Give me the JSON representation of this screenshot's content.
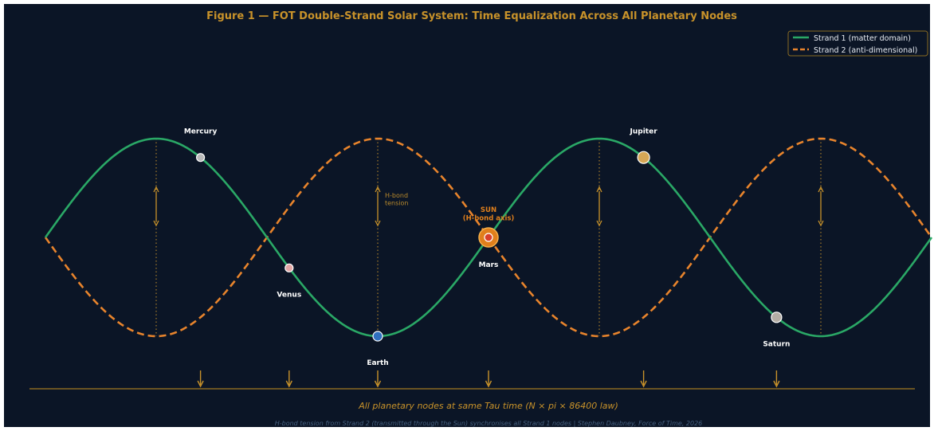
{
  "title": "Figure 1 — FOT Double-Strand Solar System: Time Equalization Across All Planetary Nodes",
  "legend": {
    "placement": "top-right",
    "items": [
      {
        "label": "Strand 1 (matter domain)",
        "color": "#2aa866",
        "style": "solid"
      },
      {
        "label": "Strand 2 (anti-dimensional)",
        "color": "#e8842c",
        "style": "dashed"
      }
    ]
  },
  "colors": {
    "background": "#0b1526",
    "gold": "#c8922a",
    "strand1": "#2aa866",
    "strand2": "#e8842c",
    "sun": "#e07f1c",
    "sun_core": "#d9402b",
    "white_text": "#ffffff",
    "footer": "#46607f"
  },
  "annotations": {
    "hbond": "H-bond\ntension",
    "sun": "SUN\n(H-bond axis)"
  },
  "chart_data": {
    "type": "line",
    "x_range": [
      0,
      8
    ],
    "y_range": [
      -1,
      1
    ],
    "series": [
      {
        "name": "Strand 1 (matter domain)",
        "function": "sin(pi*x/2)",
        "style": "solid"
      },
      {
        "name": "Strand 2 (anti-dimensional)",
        "function": "-sin(pi*x/2)",
        "style": "dashed"
      }
    ],
    "hbond_positions": [
      1,
      3,
      5,
      7
    ],
    "planets": [
      {
        "name": "Mercury",
        "x": 1.4,
        "color": "#b9b9b9"
      },
      {
        "name": "Venus",
        "x": 2.2,
        "color": "#e3a8a6"
      },
      {
        "name": "Earth",
        "x": 3.0,
        "color": "#2f6fbf"
      },
      {
        "name": "Mars",
        "x": 4.0,
        "color": "#d9402b"
      },
      {
        "name": "Jupiter",
        "x": 5.4,
        "color": "#d6a756"
      },
      {
        "name": "Saturn",
        "x": 6.6,
        "color": "#b4ada5"
      }
    ],
    "sun": {
      "x": 4.0
    }
  },
  "baseline_label": "All planetary nodes at same Tau time  (N × pi × 86400 law)",
  "footer": "H-bond tension from Strand 2 (transmitted through the Sun) synchronises all Strand 1 nodes   |   Stephen Daubney, Force of Time, 2026"
}
